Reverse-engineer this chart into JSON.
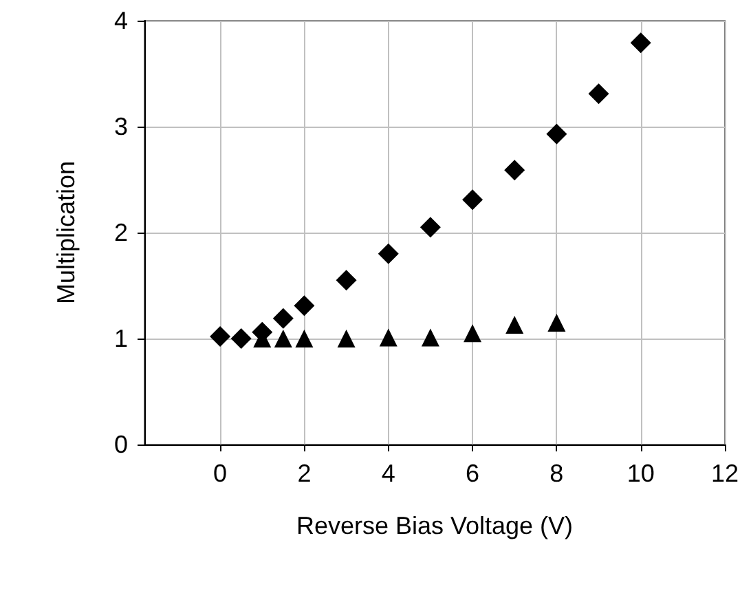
{
  "chart_data": {
    "type": "scatter",
    "xlabel": "Reverse Bias Voltage (V)",
    "ylabel": "Multiplication",
    "xlim": [
      -1.8,
      12
    ],
    "xticks": [
      0,
      2,
      4,
      6,
      8,
      10,
      12
    ],
    "ylim": [
      0,
      4
    ],
    "yticks": [
      0,
      1,
      2,
      3,
      4
    ],
    "grid": true,
    "series": [
      {
        "marker": "diamond",
        "color": "#000000",
        "x": [
          0,
          0.5,
          1,
          1.5,
          2,
          3,
          4,
          5,
          6,
          7,
          8,
          9,
          10
        ],
        "values": [
          1.02,
          1.0,
          1.06,
          1.19,
          1.31,
          1.55,
          1.8,
          2.05,
          2.31,
          2.59,
          2.93,
          3.31,
          3.79
        ]
      },
      {
        "marker": "triangle",
        "color": "#000000",
        "x": [
          1,
          1.5,
          2,
          3,
          4,
          5,
          6,
          7,
          8
        ],
        "values": [
          1.0,
          1.0,
          1.0,
          1.0,
          1.01,
          1.01,
          1.05,
          1.13,
          1.15
        ]
      }
    ]
  }
}
